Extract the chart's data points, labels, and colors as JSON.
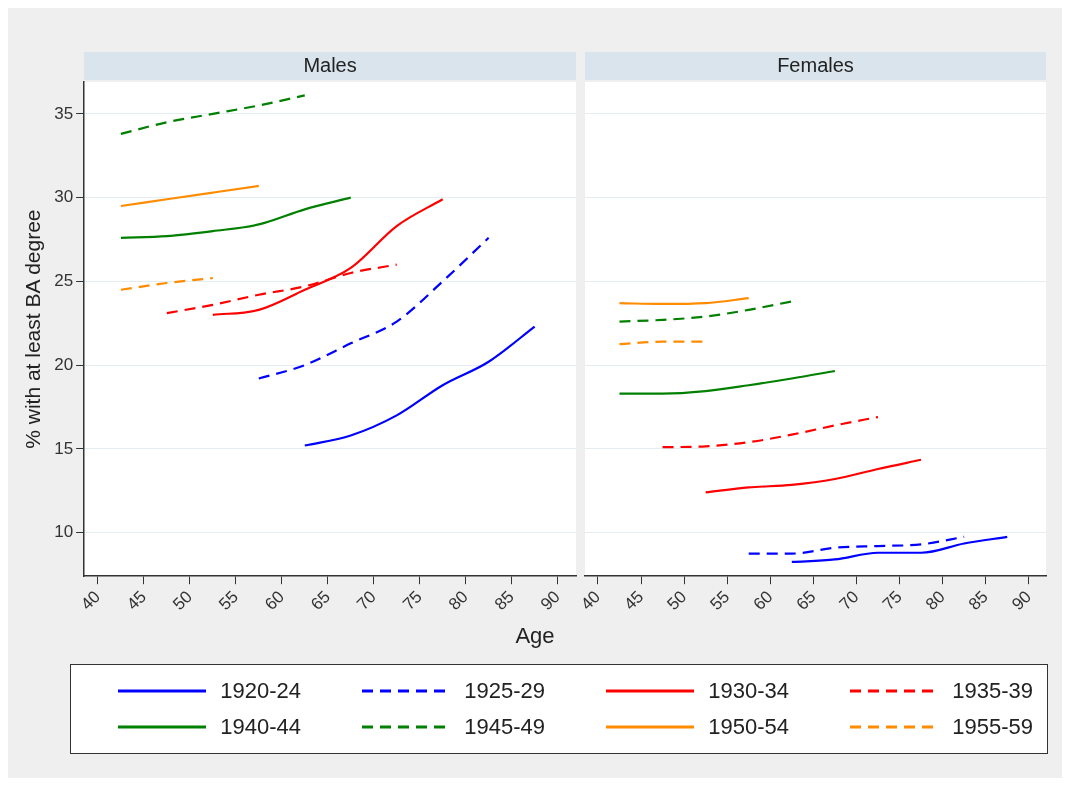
{
  "chart_data": [
    {
      "type": "line",
      "title": "Males",
      "xlabel": "Age",
      "ylabel": "% with at least BA degree",
      "xlim": [
        38.5,
        92
      ],
      "xticks": [
        40,
        45,
        50,
        55,
        60,
        65,
        70,
        75,
        80,
        85,
        90
      ],
      "ylim": [
        7.4,
        36.9
      ],
      "yticks": [
        10,
        15,
        20,
        25,
        30,
        35
      ],
      "grid": "y",
      "legend": "bottom",
      "series": [
        {
          "name": "1920-24",
          "color": "#0000ff",
          "line_style": "solid",
          "x": [
            62.5,
            67.5,
            72.5,
            77.5,
            82.5,
            87.5
          ],
          "values": [
            15.2,
            15.8,
            17.0,
            18.8,
            20.2,
            22.3
          ]
        },
        {
          "name": "1925-29",
          "color": "#0000ff",
          "line_style": "dashed",
          "x": [
            57.5,
            62.5,
            67.5,
            72.5,
            77.5,
            82.5
          ],
          "values": [
            19.2,
            20.0,
            21.3,
            22.6,
            25.0,
            27.6
          ]
        },
        {
          "name": "1930-34",
          "color": "#ff0000",
          "line_style": "solid",
          "x": [
            52.5,
            57.5,
            62.5,
            67.5,
            72.5,
            77.5
          ],
          "values": [
            23.0,
            23.3,
            24.5,
            25.8,
            28.3,
            29.9
          ]
        },
        {
          "name": "1935-39",
          "color": "#ff0000",
          "line_style": "dashed",
          "x": [
            47.5,
            52.5,
            57.5,
            62.5,
            67.5,
            72.5
          ],
          "values": [
            23.1,
            23.6,
            24.2,
            24.7,
            25.5,
            26.0
          ]
        },
        {
          "name": "1940-44",
          "color": "#008000",
          "line_style": "solid",
          "x": [
            42.5,
            47.5,
            52.5,
            57.5,
            62.5,
            67.5
          ],
          "values": [
            27.6,
            27.7,
            28.0,
            28.4,
            29.3,
            30.0
          ]
        },
        {
          "name": "1945-49",
          "color": "#008000",
          "line_style": "dashed",
          "x": [
            42.5,
            47.5,
            52.5,
            57.5,
            62.5
          ],
          "values": [
            33.8,
            34.5,
            35.0,
            35.5,
            36.1
          ]
        },
        {
          "name": "1950-54",
          "color": "#ff8c00",
          "line_style": "solid",
          "x": [
            42.5,
            47.5,
            52.5,
            57.5
          ],
          "values": [
            29.5,
            29.9,
            30.3,
            30.7
          ]
        },
        {
          "name": "1955-59",
          "color": "#ff8c00",
          "line_style": "dashed",
          "x": [
            42.5,
            47.5,
            52.5
          ],
          "values": [
            24.5,
            24.9,
            25.2
          ]
        }
      ]
    },
    {
      "type": "line",
      "title": "Females",
      "xlim": [
        38.5,
        92
      ],
      "xticks": [
        40,
        45,
        50,
        55,
        60,
        65,
        70,
        75,
        80,
        85,
        90
      ],
      "ylim": [
        7.4,
        36.9
      ],
      "yticks": [
        10,
        15,
        20,
        25,
        30,
        35
      ],
      "grid": "y",
      "tick_labels": "x",
      "series": [
        {
          "name": "1920-24",
          "color": "#0000ff",
          "line_style": "solid",
          "x": [
            62.5,
            67.5,
            72.5,
            77.5,
            82.5,
            87.5
          ],
          "values": [
            8.25,
            8.4,
            8.8,
            8.8,
            9.35,
            9.75
          ]
        },
        {
          "name": "1925-29",
          "color": "#0000ff",
          "line_style": "dashed",
          "x": [
            57.5,
            62.5,
            67.5,
            72.5,
            77.5,
            82.5
          ],
          "values": [
            8.75,
            8.75,
            9.1,
            9.2,
            9.3,
            9.75
          ]
        },
        {
          "name": "1930-34",
          "color": "#ff0000",
          "line_style": "solid",
          "x": [
            52.5,
            57.5,
            62.5,
            67.5,
            72.5,
            77.5
          ],
          "values": [
            12.4,
            12.7,
            12.85,
            13.2,
            13.8,
            14.35
          ]
        },
        {
          "name": "1935-39",
          "color": "#ff0000",
          "line_style": "dashed",
          "x": [
            47.5,
            52.5,
            57.5,
            62.5,
            67.5,
            72.5
          ],
          "values": [
            15.1,
            15.15,
            15.4,
            15.85,
            16.4,
            16.9
          ]
        },
        {
          "name": "1940-44",
          "color": "#008000",
          "line_style": "solid",
          "x": [
            42.5,
            47.5,
            52.5,
            57.5,
            62.5,
            67.5
          ],
          "values": [
            18.3,
            18.3,
            18.45,
            18.8,
            19.2,
            19.65
          ]
        },
        {
          "name": "1945-49",
          "color": "#008000",
          "line_style": "dashed",
          "x": [
            42.5,
            47.5,
            52.5,
            57.5,
            62.5
          ],
          "values": [
            22.6,
            22.7,
            22.9,
            23.3,
            23.8
          ]
        },
        {
          "name": "1950-54",
          "color": "#ff8c00",
          "line_style": "solid",
          "x": [
            42.5,
            47.5,
            52.5,
            57.5
          ],
          "values": [
            23.7,
            23.65,
            23.7,
            24.0
          ]
        },
        {
          "name": "1955-59",
          "color": "#ff8c00",
          "line_style": "dashed",
          "x": [
            42.5,
            47.5,
            52.5
          ],
          "values": [
            21.25,
            21.4,
            21.4
          ]
        }
      ]
    }
  ]
}
